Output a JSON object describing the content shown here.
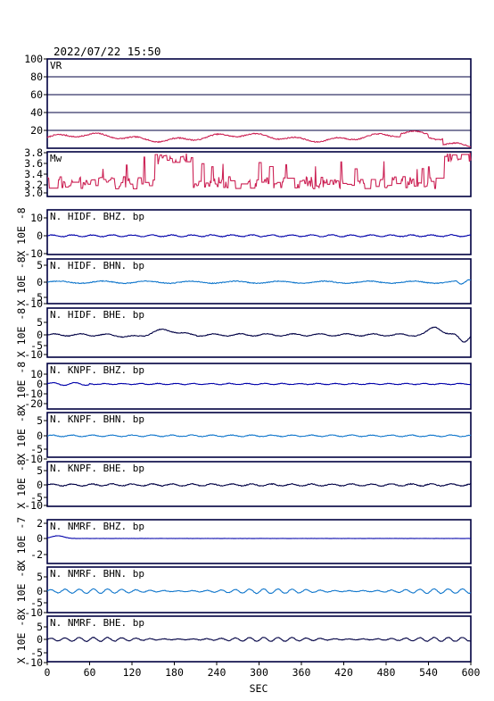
{
  "header": {
    "timestamp": "2022/07/22 15:50"
  },
  "colors": {
    "frame": "#000040",
    "vr_trace": "#cc2255",
    "mw_trace": "#cc2255",
    "bhz_trace": "#0000aa",
    "bhn_trace": "#1177cc",
    "bhe_trace": "#000044"
  },
  "chart_data": [
    {
      "type": "line",
      "label": "VR",
      "ylim": [
        0,
        100
      ],
      "yticks": [
        "100",
        "80",
        "60",
        "40",
        "20"
      ],
      "ylabel": "",
      "grid": true,
      "color_key": "vr_trace",
      "wave": {
        "kind": "vr",
        "base": 12,
        "amp": 5
      }
    },
    {
      "type": "line",
      "label": "Mw",
      "ylim": [
        2.95,
        3.85
      ],
      "yticks": [
        "3.8",
        "3.6",
        "3.4",
        "3.2",
        "3.0"
      ],
      "ylabel": "",
      "grid": false,
      "color_key": "mw_trace",
      "wave": {
        "kind": "mw"
      }
    },
    {
      "type": "line",
      "label": "N. HIDF. BHZ. bp",
      "ylim": [
        -10,
        15
      ],
      "yticks": [
        "10",
        "0",
        "-10"
      ],
      "ylabel": "X 10E -8",
      "grid": false,
      "color_key": "bhz_trace",
      "wave": {
        "kind": "noise",
        "amp": 0.8,
        "seed": 11
      }
    },
    {
      "type": "line",
      "label": "N. HIDF. BHN. bp",
      "ylim": [
        -10,
        10
      ],
      "yticks": [
        "5",
        "0",
        "-5",
        "-10"
      ],
      "ylabel": "X 10E -8",
      "grid": false,
      "color_key": "bhn_trace",
      "wave": {
        "kind": "bhn",
        "amp": 1.2,
        "seed": 23
      }
    },
    {
      "type": "line",
      "label": "N. HIDF. BHE. bp",
      "ylim": [
        -10,
        10
      ],
      "yticks": [
        "5",
        "0",
        "-5",
        "-10"
      ],
      "ylabel": "X 10E -8",
      "grid": false,
      "color_key": "bhe_trace",
      "wave": {
        "kind": "bhe",
        "amp": 1.0,
        "seed": 37
      }
    },
    {
      "type": "line",
      "label": "N. KNPF. BHZ. bp",
      "ylim": [
        -20,
        15
      ],
      "yticks": [
        "10",
        "0",
        "-10",
        "-20"
      ],
      "ylabel": "X 10E -8",
      "grid": false,
      "color_key": "bhz_trace",
      "wave": {
        "kind": "knz",
        "amp": 0.7,
        "seed": 41
      }
    },
    {
      "type": "line",
      "label": "N. KNPF. BHN. bp",
      "ylim": [
        -10,
        10
      ],
      "yticks": [
        "5",
        "0",
        "-5",
        "-10"
      ],
      "ylabel": "X 10E -8",
      "grid": false,
      "color_key": "bhn_trace",
      "wave": {
        "kind": "noise",
        "amp": 0.7,
        "seed": 53
      }
    },
    {
      "type": "line",
      "label": "N. KNPF. BHE. bp",
      "ylim": [
        -10,
        10
      ],
      "yticks": [
        "5",
        "0",
        "-5",
        "-10"
      ],
      "ylabel": "X 10E -8",
      "grid": false,
      "color_key": "bhe_trace",
      "wave": {
        "kind": "noise",
        "amp": 0.9,
        "seed": 67
      }
    },
    {
      "type": "line",
      "label": "N. NMRF. BHZ. bp",
      "ylim": [
        -3,
        2.3
      ],
      "yticks": [
        "2",
        "0",
        "-2"
      ],
      "ylabel": "X 10E -7",
      "grid": false,
      "color_key": "bhz_trace",
      "wave": {
        "kind": "nmz",
        "amp": 0.05,
        "seed": 71
      }
    },
    {
      "type": "line",
      "label": "N. NMRF. BHN. bp",
      "ylim": [
        -10,
        10
      ],
      "yticks": [
        "5",
        "0",
        "-5",
        "-10"
      ],
      "ylabel": "X 10E -8",
      "grid": false,
      "color_key": "bhn_trace",
      "wave": {
        "kind": "osc",
        "amp": 1.8,
        "seed": 83
      }
    },
    {
      "type": "line",
      "label": "N. NMRF. BHE. bp",
      "ylim": [
        -10,
        10
      ],
      "yticks": [
        "5",
        "0",
        "-5",
        "-10"
      ],
      "ylabel": "X 10E -8",
      "grid": false,
      "color_key": "bhe_trace",
      "wave": {
        "kind": "osc",
        "amp": 1.6,
        "seed": 97
      }
    }
  ],
  "xaxis": {
    "xlim": [
      0,
      600
    ],
    "ticks": [
      "0",
      "60",
      "120",
      "180",
      "240",
      "300",
      "360",
      "420",
      "480",
      "540",
      "600"
    ],
    "label": "SEC"
  }
}
